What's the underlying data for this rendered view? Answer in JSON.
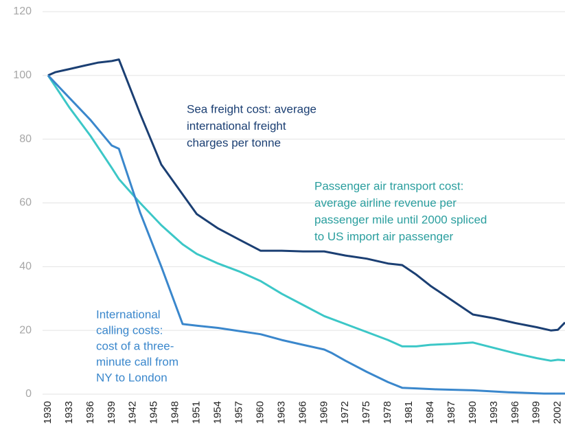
{
  "chart_data": {
    "type": "line",
    "xlim": [
      1930,
      2003
    ],
    "xticks": [
      1930,
      1933,
      1936,
      1939,
      1942,
      1945,
      1948,
      1951,
      1954,
      1957,
      1960,
      1963,
      1966,
      1969,
      1972,
      1975,
      1978,
      1981,
      1984,
      1987,
      1990,
      1993,
      1996,
      1999,
      2002
    ],
    "ylim": [
      0,
      120
    ],
    "yticks": [
      0,
      20,
      40,
      60,
      80,
      100,
      120
    ],
    "grid": true,
    "series": [
      {
        "name": [
          "Sea freight cost: average",
          "international freight",
          "charges per tonne"
        ],
        "color": "#1b3f73",
        "label_color": "#1b3f73",
        "x": [
          1930,
          1931,
          1932,
          1933,
          1935,
          1937,
          1939,
          1940,
          1943,
          1946,
          1951,
          1954,
          1957,
          1960,
          1963,
          1966,
          1969,
          1972,
          1975,
          1978,
          1980,
          1982,
          1984,
          1987,
          1990,
          1993,
          1996,
          1999,
          2001,
          2002,
          2003
        ],
        "values": [
          100,
          101,
          101.5,
          102,
          103,
          104,
          104.5,
          105,
          88,
          72,
          56.5,
          52,
          48.5,
          45,
          45,
          44.8,
          44.8,
          43.5,
          42.5,
          41,
          40.5,
          37.5,
          34,
          29.5,
          25,
          23.8,
          22.3,
          21,
          20,
          20.2,
          22.5
        ]
      },
      {
        "name": [
          "Passenger air transport cost:",
          "average airline revenue per",
          "passenger mile until 2000 spliced",
          "to US import air passenger"
        ],
        "color": "#3cc7c7",
        "label_color": "#2a9e9e",
        "x": [
          1930,
          1933,
          1936,
          1939,
          1940,
          1943,
          1946,
          1949,
          1951,
          1954,
          1957,
          1960,
          1963,
          1966,
          1969,
          1972,
          1975,
          1978,
          1980,
          1982,
          1984,
          1987,
          1990,
          1993,
          1996,
          1999,
          2001,
          2002,
          2003
        ],
        "values": [
          100,
          90,
          81,
          71,
          67.5,
          60,
          53,
          47,
          44,
          41,
          38.5,
          35.5,
          31.5,
          28,
          24.5,
          22,
          19.5,
          17,
          15,
          15,
          15.5,
          15.8,
          16.2,
          14.5,
          12.8,
          11.3,
          10.5,
          10.8,
          10.6
        ]
      },
      {
        "name": [
          "International",
          "calling costs:",
          "cost of a three-",
          "minute call from",
          "NY to London"
        ],
        "color": "#3a87cc",
        "label_color": "#3a87cc",
        "x": [
          1930,
          1933,
          1936,
          1939,
          1940,
          1943,
          1946,
          1949,
          1951,
          1954,
          1957,
          1960,
          1963,
          1966,
          1969,
          1970,
          1972,
          1975,
          1978,
          1980,
          1982,
          1985,
          1990,
          1995,
          2000,
          2003
        ],
        "values": [
          100,
          93,
          86,
          78,
          77,
          57,
          40,
          22,
          21.5,
          20.8,
          19.8,
          18.8,
          17,
          15.5,
          14,
          13,
          10.5,
          7,
          3.8,
          2,
          1.8,
          1.5,
          1.2,
          0.6,
          0.2,
          0.2
        ]
      }
    ]
  }
}
